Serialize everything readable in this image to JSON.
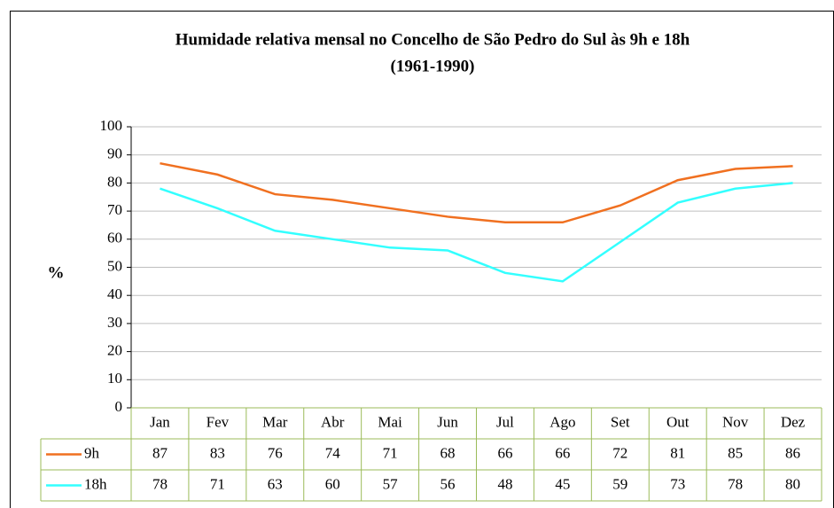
{
  "chart_data": {
    "type": "line",
    "title": "Humidade relativa mensal no Concelho de São Pedro do Sul às 9h e 18h",
    "subtitle": "(1961-1990)",
    "y_label": "%",
    "categories": [
      "Jan",
      "Fev",
      "Mar",
      "Abr",
      "Mai",
      "Jun",
      "Jul",
      "Ago",
      "Set",
      "Out",
      "Nov",
      "Dez"
    ],
    "series": [
      {
        "name": "9h",
        "color": "#f07020",
        "values": [
          87,
          83,
          76,
          74,
          71,
          68,
          66,
          66,
          72,
          81,
          85,
          86
        ]
      },
      {
        "name": "18h",
        "color": "#33ffff",
        "values": [
          78,
          71,
          63,
          60,
          57,
          56,
          48,
          45,
          59,
          73,
          78,
          80
        ]
      }
    ],
    "ylim": [
      0,
      100
    ],
    "yticks": [
      0,
      10,
      20,
      30,
      40,
      50,
      60,
      70,
      80,
      90,
      100
    ],
    "grid": true,
    "data_table": true
  }
}
